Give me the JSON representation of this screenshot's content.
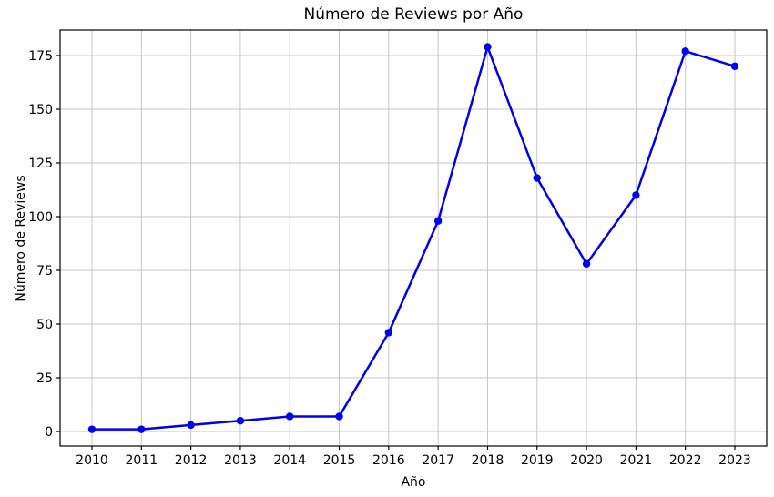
{
  "figure": {
    "title": "Número de Reviews por Año",
    "xlabel": "Año",
    "ylabel": "Número de Reviews"
  },
  "chart_data": {
    "type": "line",
    "title": "Número de Reviews por Año",
    "xlabel": "Año",
    "ylabel": "Número de Reviews",
    "categories": [
      "2010",
      "2011",
      "2012",
      "2013",
      "2014",
      "2015",
      "2016",
      "2017",
      "2018",
      "2019",
      "2020",
      "2021",
      "2022",
      "2023"
    ],
    "series": [
      {
        "name": "Número de Reviews",
        "values": [
          1,
          1,
          3,
          5,
          7,
          7,
          46,
          98,
          179,
          118,
          78,
          110,
          177,
          170
        ]
      }
    ],
    "yticks": [
      0,
      25,
      50,
      75,
      100,
      125,
      150,
      175
    ],
    "ylim": [
      -8,
      188
    ],
    "grid": true,
    "legend_position": "none",
    "colors": {
      "line": "#0000ee",
      "marker": "#0000ee",
      "grid": "#c6c6c6",
      "spine": "#000000",
      "background": "#ffffff"
    }
  }
}
